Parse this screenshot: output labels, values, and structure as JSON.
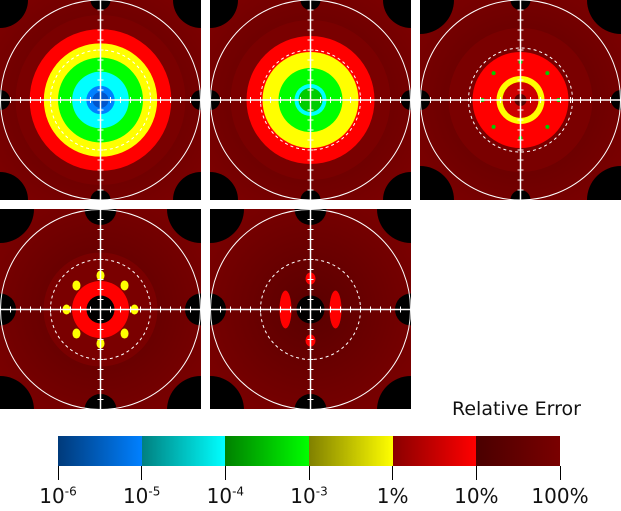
{
  "chart_data": {
    "type": "heatmap",
    "title": "Relative Error",
    "panel_count": 5,
    "colorbar": {
      "label": "Relative Error",
      "ticks": [
        {
          "base": "10",
          "exp": "-6",
          "text": ""
        },
        {
          "base": "10",
          "exp": "-5",
          "text": ""
        },
        {
          "base": "10",
          "exp": "-4",
          "text": ""
        },
        {
          "base": "10",
          "exp": "-3",
          "text": ""
        },
        {
          "base": "",
          "exp": "",
          "text": "1%"
        },
        {
          "base": "",
          "exp": "",
          "text": "10%"
        },
        {
          "base": "",
          "exp": "",
          "text": "100%"
        }
      ],
      "segments": [
        {
          "from": "#003a7a",
          "to": "#0080ff"
        },
        {
          "from": "#008080",
          "to": "#00ffff"
        },
        {
          "from": "#008000",
          "to": "#00ff00"
        },
        {
          "from": "#808000",
          "to": "#ffff00"
        },
        {
          "from": "#8a0000",
          "to": "#ff0000"
        },
        {
          "from": "#4a0000",
          "to": "#7a0000"
        }
      ]
    },
    "panels": [
      {
        "rings": [
          "#7a0000",
          "#ff0000",
          "#ffff00",
          "#00ff00",
          "#00ffff",
          "#0080ff"
        ],
        "center": "#0055cc"
      },
      {
        "rings": [
          "#7a0000",
          "#ff0000",
          "#ffff00",
          "#00ff00",
          "#00ffff"
        ],
        "center": "#00cc00"
      },
      {
        "rings": [
          "#7a0000",
          "#ff0000",
          "#ffff00"
        ],
        "center": "#cc0000"
      },
      {
        "rings": [
          "#7a0000",
          "#ff0000"
        ],
        "center": "#000000"
      },
      {
        "rings": [
          "#7a0000"
        ],
        "center": "#000000"
      }
    ]
  }
}
